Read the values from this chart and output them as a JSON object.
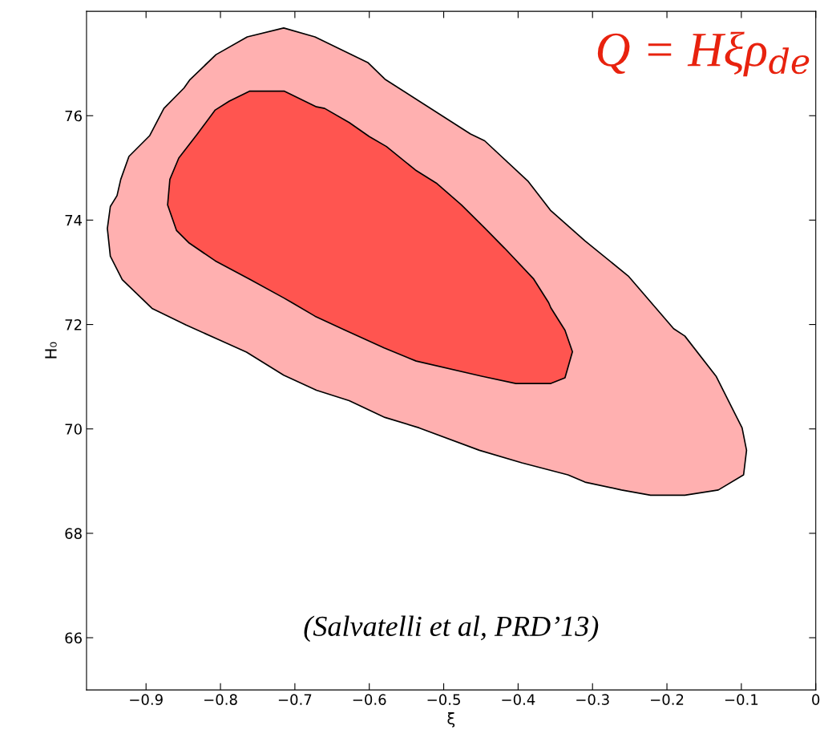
{
  "chart_data": {
    "type": "area",
    "xlabel": "ξ",
    "ylabel": "H₀",
    "annotations": [
      "Q = Hξρ$_{de}$",
      "(Salvatelli et al, PRD’13)"
    ],
    "xlim": [
      -0.98,
      0
    ],
    "ylim": [
      65,
      78
    ],
    "xticks": [
      {
        "value": -0.9,
        "label": "−0.9"
      },
      {
        "value": -0.8,
        "label": "−0.8"
      },
      {
        "value": -0.7,
        "label": "−0.7"
      },
      {
        "value": -0.6,
        "label": "−0.6"
      },
      {
        "value": -0.5,
        "label": "−0.5"
      },
      {
        "value": -0.4,
        "label": "−0.4"
      },
      {
        "value": -0.3,
        "label": "−0.3"
      },
      {
        "value": -0.2,
        "label": "−0.2"
      },
      {
        "value": -0.1,
        "label": "−0.1"
      },
      0
    ],
    "yticks": [
      66,
      68,
      70,
      72,
      74,
      76
    ],
    "grid": false,
    "legend": false,
    "series": [
      {
        "color": "#ffb0b0",
        "x": [
          -0.806,
          -0.764,
          -0.715,
          -0.673,
          -0.602,
          -0.579,
          -0.464,
          -0.445,
          -0.387,
          -0.356,
          -0.31,
          -0.252,
          -0.191,
          -0.176,
          -0.134,
          -0.099,
          -0.093,
          -0.097,
          -0.131,
          -0.176,
          -0.222,
          -0.261,
          -0.31,
          -0.333,
          -0.395,
          -0.452,
          -0.533,
          -0.579,
          -0.627,
          -0.671,
          -0.715,
          -0.765,
          -0.804,
          -0.846,
          -0.892,
          -0.932,
          -0.948,
          -0.952,
          -0.948,
          -0.939,
          -0.934,
          -0.923,
          -0.895,
          -0.876,
          -0.849,
          -0.841
        ],
        "values": [
          77.17,
          77.51,
          77.68,
          77.51,
          77.02,
          76.7,
          75.65,
          75.52,
          74.75,
          74.18,
          73.6,
          72.93,
          71.92,
          71.78,
          71.01,
          70.02,
          69.59,
          69.12,
          68.83,
          68.73,
          68.73,
          68.83,
          68.98,
          69.12,
          69.35,
          69.59,
          70.02,
          70.22,
          70.54,
          70.74,
          71.03,
          71.47,
          71.72,
          71.99,
          72.31,
          72.86,
          73.31,
          73.84,
          74.26,
          74.47,
          74.78,
          75.22,
          75.62,
          76.14,
          76.53,
          76.69
        ]
      },
      {
        "color": "#ff5550",
        "x": [
          -0.761,
          -0.714,
          -0.671,
          -0.66,
          -0.627,
          -0.6,
          -0.577,
          -0.538,
          -0.51,
          -0.476,
          -0.445,
          -0.418,
          -0.379,
          -0.359,
          -0.356,
          -0.337,
          -0.327,
          -0.337,
          -0.356,
          -0.403,
          -0.449,
          -0.537,
          -0.58,
          -0.634,
          -0.673,
          -0.704,
          -0.715,
          -0.761,
          -0.807,
          -0.842,
          -0.859,
          -0.871,
          -0.868,
          -0.856,
          -0.831,
          -0.807,
          -0.788
        ],
        "values": [
          76.47,
          76.47,
          76.17,
          76.14,
          75.87,
          75.6,
          75.41,
          74.96,
          74.71,
          74.29,
          73.85,
          73.46,
          72.87,
          72.42,
          72.32,
          71.89,
          71.48,
          70.98,
          70.87,
          70.87,
          71.01,
          71.3,
          71.55,
          71.9,
          72.16,
          72.42,
          72.51,
          72.87,
          73.22,
          73.56,
          73.8,
          74.29,
          74.78,
          75.19,
          75.65,
          76.11,
          76.28
        ]
      }
    ]
  }
}
